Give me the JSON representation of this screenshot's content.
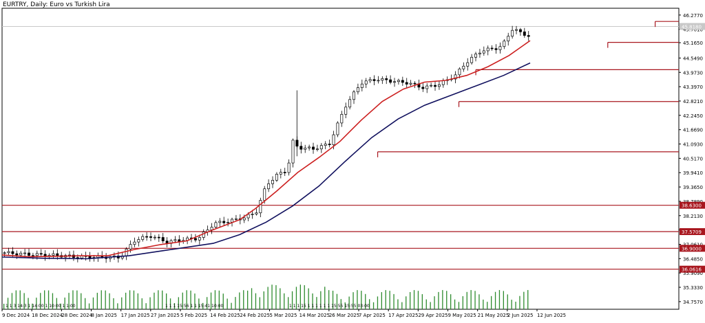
{
  "chart_data": {
    "type": "candlestick",
    "title": "EURTRY, Daily:  Euro vs Turkish Lira",
    "ylim": [
      34.45,
      46.55
    ],
    "current_price": "45.8180",
    "y_ticks": [
      "46.2770",
      "45.7010",
      "45.1650",
      "44.5490",
      "43.9730",
      "43.3970",
      "42.8210",
      "42.2450",
      "41.6690",
      "41.0930",
      "40.5170",
      "39.9410",
      "39.3650",
      "38.7890",
      "38.2130",
      "37.6370",
      "37.0610",
      "36.4850",
      "35.9090",
      "35.3330",
      "34.7570"
    ],
    "x_ticks": [
      "9 Dec 2024",
      "18 Dec 2024",
      "28 Dec 2024",
      "8 Jan 2025",
      "17 Jan 2025",
      "27 Jan 2025",
      "5 Feb 2025",
      "14 Feb 2025",
      "24 Feb 2025",
      "5 Mar 2025",
      "14 Mar 2025",
      "26 Mar 2025",
      "7 Apr 2025",
      "17 Apr 2025",
      "29 Apr 2025",
      "9 May 2025",
      "21 May 2025",
      "2 Jun 2025",
      "12 Jun 2025"
    ],
    "levels": [
      {
        "value": 46.02,
        "start": 0.965
      },
      {
        "value": 45.18,
        "start": 0.895
      },
      {
        "value": 44.08,
        "start": 0.7
      },
      {
        "value": 42.8,
        "start": 0.675
      },
      {
        "value": 40.78,
        "start": 0.555
      },
      {
        "value": 38.63,
        "label": "38.6300",
        "start": 0
      },
      {
        "value": 37.5709,
        "label": "37.5709",
        "start": 0
      },
      {
        "value": 36.9,
        "label": "36.9000",
        "start": 0
      },
      {
        "value": 36.0616,
        "label": "36.0616",
        "start": 0
      }
    ],
    "price_path": [
      [
        0,
        36.72
      ],
      [
        0.05,
        36.65
      ],
      [
        0.1,
        36.62
      ],
      [
        0.14,
        36.55
      ],
      [
        0.19,
        36.55
      ],
      [
        0.22,
        36.53
      ],
      [
        0.25,
        37.25
      ],
      [
        0.28,
        37.4
      ],
      [
        0.31,
        37.15
      ],
      [
        0.34,
        37.25
      ],
      [
        0.37,
        37.3
      ],
      [
        0.4,
        37.9
      ],
      [
        0.43,
        38.0
      ],
      [
        0.46,
        38.15
      ],
      [
        0.48,
        38.35
      ],
      [
        0.5,
        39.45
      ],
      [
        0.52,
        39.85
      ],
      [
        0.54,
        40.05
      ],
      [
        0.55,
        41.2
      ],
      [
        0.56,
        40.95
      ],
      [
        0.59,
        40.9
      ],
      [
        0.62,
        41.1
      ],
      [
        0.65,
        42.6
      ],
      [
        0.68,
        43.55
      ],
      [
        0.71,
        43.7
      ],
      [
        0.74,
        43.62
      ],
      [
        0.77,
        43.55
      ],
      [
        0.8,
        43.35
      ],
      [
        0.83,
        43.5
      ],
      [
        0.86,
        43.85
      ],
      [
        0.88,
        44.35
      ],
      [
        0.91,
        44.85
      ],
      [
        0.94,
        44.95
      ],
      [
        0.95,
        45.05
      ],
      [
        0.97,
        45.75
      ],
      [
        0.985,
        45.55
      ],
      [
        1,
        45.45
      ]
    ],
    "series": [
      {
        "color": "#cc1f1f",
        "values": [
          [
            0.0,
            36.63
          ],
          [
            0.05,
            36.56
          ],
          [
            0.1,
            36.58
          ],
          [
            0.15,
            36.6
          ],
          [
            0.2,
            36.6
          ],
          [
            0.25,
            36.85
          ],
          [
            0.3,
            37.05
          ],
          [
            0.35,
            37.2
          ],
          [
            0.4,
            37.65
          ],
          [
            0.45,
            38.05
          ],
          [
            0.48,
            38.5
          ],
          [
            0.52,
            39.2
          ],
          [
            0.56,
            39.95
          ],
          [
            0.6,
            40.55
          ],
          [
            0.64,
            41.2
          ],
          [
            0.68,
            42.05
          ],
          [
            0.72,
            42.8
          ],
          [
            0.76,
            43.3
          ],
          [
            0.8,
            43.58
          ],
          [
            0.84,
            43.65
          ],
          [
            0.88,
            43.85
          ],
          [
            0.92,
            44.2
          ],
          [
            0.96,
            44.65
          ],
          [
            1.0,
            45.25
          ]
        ]
      },
      {
        "color": "#10105e",
        "values": [
          [
            0.0,
            36.55
          ],
          [
            0.08,
            36.5
          ],
          [
            0.16,
            36.48
          ],
          [
            0.24,
            36.6
          ],
          [
            0.32,
            36.85
          ],
          [
            0.4,
            37.1
          ],
          [
            0.45,
            37.45
          ],
          [
            0.5,
            37.95
          ],
          [
            0.55,
            38.6
          ],
          [
            0.6,
            39.4
          ],
          [
            0.65,
            40.4
          ],
          [
            0.7,
            41.35
          ],
          [
            0.75,
            42.1
          ],
          [
            0.8,
            42.65
          ],
          [
            0.85,
            43.05
          ],
          [
            0.9,
            43.45
          ],
          [
            0.95,
            43.85
          ],
          [
            1.0,
            44.35
          ]
        ]
      }
    ],
    "volume_labels": [
      "1 1 3 14:3 1 14:00 1 10:00 1 1:00",
      "1 1 1 15:56 1 1 15:41 10:00",
      "1 1 1 15 1 1 1 1 1 1 15:55 15:55 03:00"
    ]
  }
}
